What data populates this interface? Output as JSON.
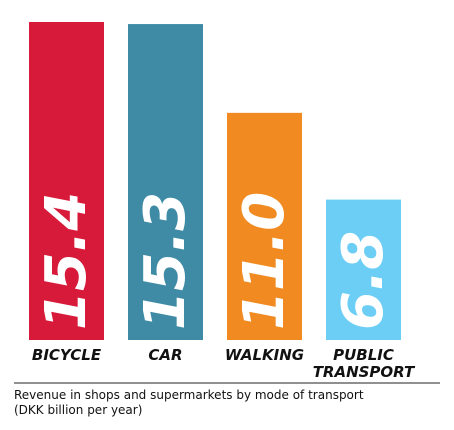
{
  "chart_data": {
    "type": "bar",
    "categories": [
      "BICYCLE",
      "CAR",
      "WALKING",
      "PUBLIC TRANSPORT"
    ],
    "category_lines": [
      [
        "BICYCLE"
      ],
      [
        "CAR"
      ],
      [
        "WALKING"
      ],
      [
        "PUBLIC",
        "TRANSPORT"
      ]
    ],
    "values": [
      15.4,
      15.3,
      11.0,
      6.8
    ],
    "value_labels": [
      "15.4",
      "15.3",
      "11.0",
      "6.8"
    ],
    "colors": [
      "#d81a3a",
      "#3f8ba6",
      "#f08a21",
      "#6ccef5"
    ],
    "ylim": [
      0,
      15.4
    ],
    "grid": false,
    "legend": "none",
    "title": "",
    "xlabel": "",
    "ylabel": ""
  },
  "caption": {
    "line1": "Revenue in shops and supermarkets by mode of transport",
    "line2": "(DKK billion per year)"
  }
}
